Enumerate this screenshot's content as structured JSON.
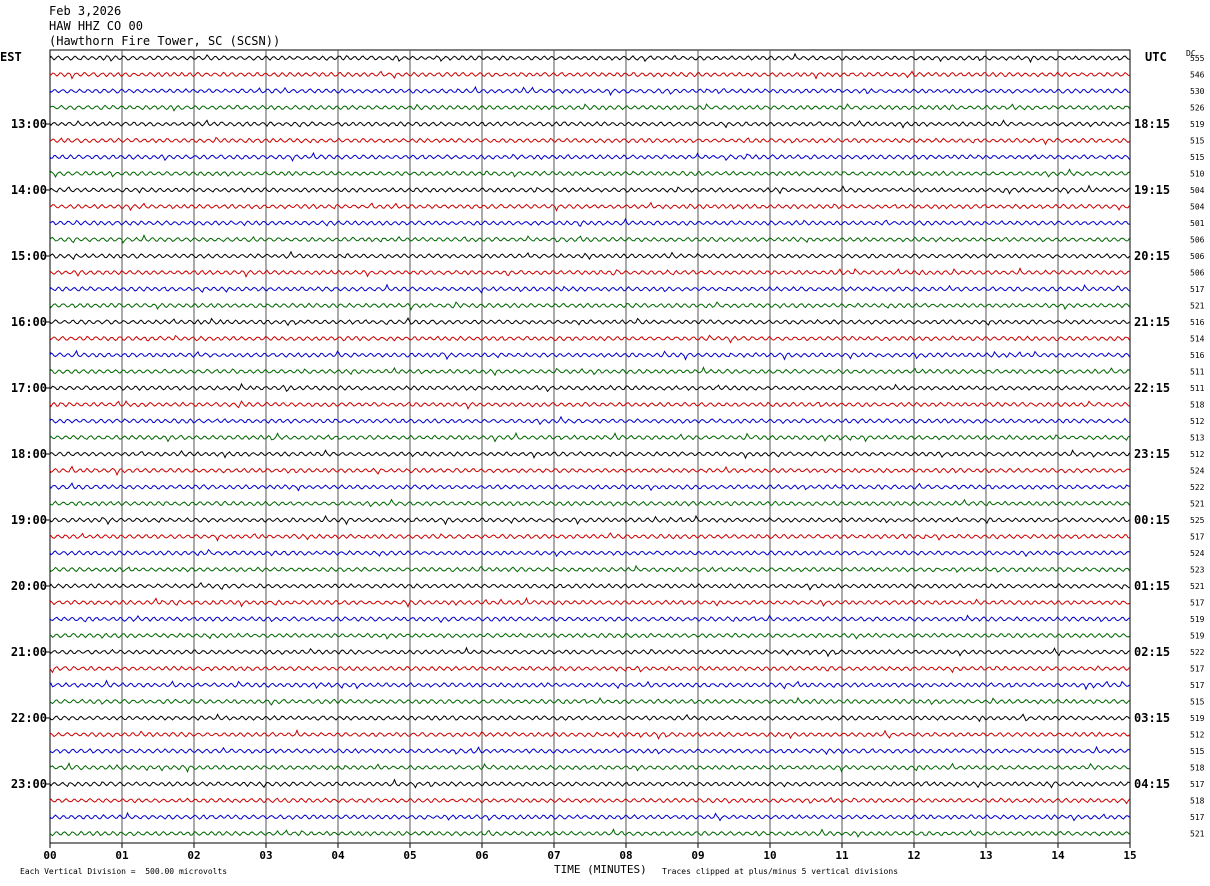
{
  "header": {
    "date": "Feb 3,2026",
    "station": "HAW HHZ CO 00",
    "location": "(Hawthorn Fire Tower, SC (SCSN))"
  },
  "corners": {
    "left_tz": "EST",
    "right_tz": "UTC",
    "dc_label": "DC"
  },
  "footer": {
    "scale_note": "Each Vertical Division =  500.00 microvolts",
    "axis_title": "TIME (MINUTES)",
    "clip_note": "Traces clipped at plus/minus 5 vertical divisions"
  },
  "chart_data": {
    "type": "line",
    "xlabel": "TIME (MINUTES)",
    "xlim": [
      0,
      15
    ],
    "x_ticks": [
      "00",
      "01",
      "02",
      "03",
      "04",
      "05",
      "06",
      "07",
      "08",
      "09",
      "10",
      "11",
      "12",
      "13",
      "14",
      "15"
    ],
    "trace_colors": [
      "#000000",
      "#cc0000",
      "#0000cc",
      "#006600"
    ],
    "left_hour_labels": [
      "13:00",
      "14:00",
      "15:00",
      "16:00",
      "17:00",
      "18:00",
      "19:00",
      "20:00",
      "21:00",
      "22:00",
      "23:00"
    ],
    "right_hour_labels": [
      "18:15",
      "19:15",
      "20:15",
      "21:15",
      "22:15",
      "23:15",
      "00:15",
      "01:15",
      "02:15",
      "03:15",
      "04:15"
    ],
    "dc_offsets": [
      555,
      546,
      530,
      526,
      519,
      515,
      515,
      510,
      504,
      504,
      501,
      506,
      506,
      506,
      517,
      521,
      516,
      514,
      516,
      511,
      511,
      518,
      512,
      513,
      512,
      524,
      522,
      521,
      525,
      517,
      524,
      523,
      521,
      517,
      519,
      519,
      522,
      517,
      517,
      515,
      519,
      512,
      515,
      518,
      517,
      518,
      517,
      521
    ]
  }
}
